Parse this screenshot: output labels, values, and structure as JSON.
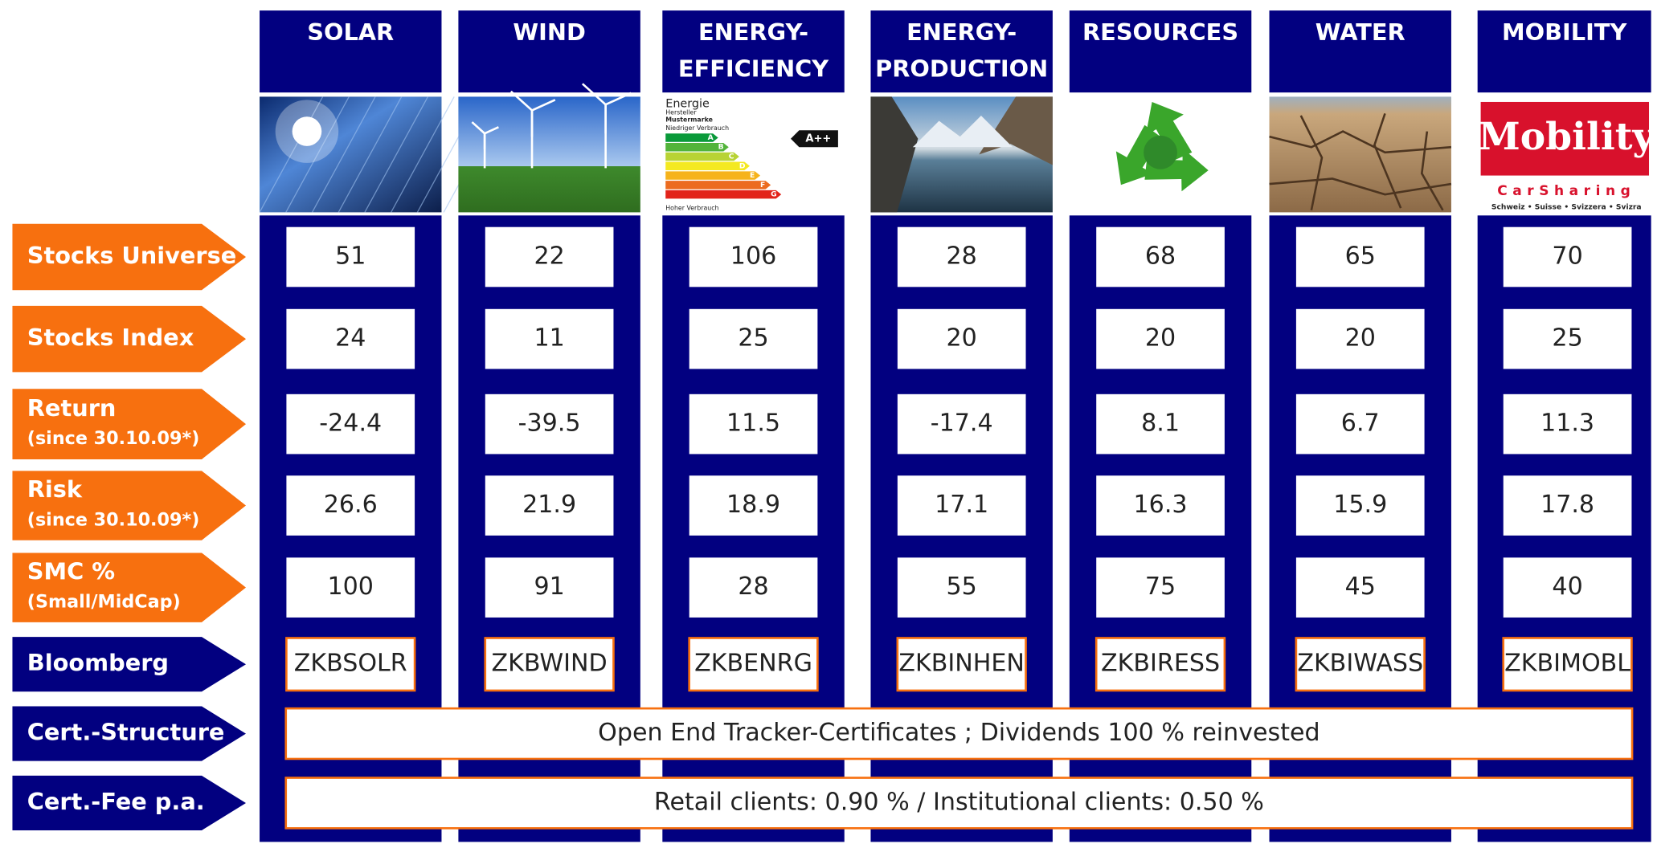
{
  "columns": [
    {
      "title": [
        "SOLAR"
      ]
    },
    {
      "title": [
        "WIND"
      ]
    },
    {
      "title": [
        "ENERGY-",
        "EFFICIENCY"
      ]
    },
    {
      "title": [
        "ENERGY-",
        "PRODUCTION"
      ]
    },
    {
      "title": [
        "RESOURCES"
      ]
    },
    {
      "title": [
        "WATER"
      ]
    },
    {
      "title": [
        "MOBILITY"
      ]
    }
  ],
  "images": {
    "energy_label": {
      "title": "Energie",
      "maker": "Hersteller",
      "brand": "Mustermarke",
      "low": "Niedriger Verbrauch",
      "high": "Hoher Verbrauch",
      "classes": [
        "A",
        "B",
        "C",
        "D",
        "E",
        "F",
        "G"
      ],
      "rating": "A++"
    },
    "mobility_logo": {
      "name": "Mobility",
      "tagline": "CarSharing",
      "languages": "Schweiz • Suisse • Svizzera • Svizra"
    }
  },
  "rows": [
    {
      "label": "Stocks Universe",
      "values": [
        51,
        22,
        106,
        28,
        68,
        65,
        70
      ]
    },
    {
      "label": "Stocks Index",
      "values": [
        24,
        11,
        25,
        20,
        20,
        20,
        25
      ]
    },
    {
      "label": "Return",
      "note": "(since 30.10.09*)",
      "values": [
        -24.4,
        -39.5,
        11.5,
        -17.4,
        8.1,
        6.7,
        11.3
      ]
    },
    {
      "label": "Risk",
      "note": "(since 30.10.09*)",
      "values": [
        26.6,
        21.9,
        18.9,
        17.1,
        16.3,
        15.9,
        17.8
      ]
    },
    {
      "label": "SMC %",
      "note": "(Small/MidCap)",
      "values": [
        100,
        91,
        28,
        55,
        75,
        45,
        40
      ]
    },
    {
      "label": "Bloomberg",
      "values": [
        "ZKBSOLR",
        "ZKBWIND",
        "ZKBENRG",
        "ZKBINHEN",
        "ZKBIRESS",
        "ZKBIWASS",
        "ZKBIMOBL"
      ]
    },
    {
      "label": "Cert.-Structure",
      "text": "Open End Tracker-Certificates ; Dividends 100 % reinvested"
    },
    {
      "label": "Cert.-Fee p.a.",
      "text": "Retail clients: 0.90 % / Institutional clients: 0.50 %"
    }
  ]
}
